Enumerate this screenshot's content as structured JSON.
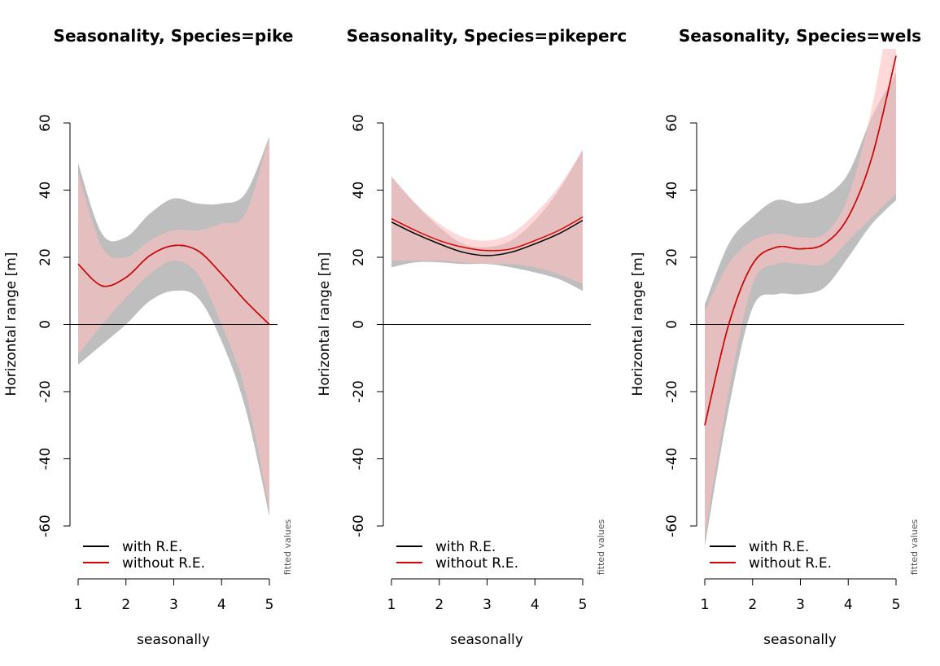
{
  "chart_data": [
    {
      "type": "line",
      "title": "Seasonality, Species=pike",
      "xlabel": "seasonally",
      "ylabel": "Horizontal range [m]",
      "xlim": [
        1,
        5
      ],
      "ylim": [
        -60,
        60
      ],
      "xticks": [
        "1",
        "2",
        "3",
        "4",
        "5"
      ],
      "yticks": [
        "-60",
        "-40",
        "-20",
        "0",
        "20",
        "40",
        "60"
      ],
      "reference_line_y": 0,
      "side_label": "fitted values",
      "legend": [
        "with R.E.",
        "without R.E."
      ],
      "legend_placement": "bottom-left",
      "x": [
        1,
        1.5,
        2,
        2.5,
        3,
        3.5,
        4,
        4.5,
        5
      ],
      "series": [
        {
          "name": "with R.E.",
          "color": "#000000",
          "values": [
            18,
            11.5,
            14,
            20.5,
            23.5,
            22,
            15,
            7,
            0
          ],
          "lower": [
            -12,
            -6,
            0,
            7,
            10,
            8,
            -5,
            -25,
            -57
          ],
          "upper": [
            48,
            27,
            26,
            33,
            37.5,
            36,
            36,
            39,
            56
          ]
        },
        {
          "name": "without R.E.",
          "color": "#dd0000",
          "values": [
            18,
            11.5,
            14,
            20.5,
            23.5,
            22,
            15,
            7,
            0
          ],
          "lower": [
            -9,
            0,
            8,
            15,
            19,
            15,
            0,
            -20,
            -55
          ],
          "upper": [
            45,
            23,
            20,
            25,
            28,
            28,
            30,
            33,
            56
          ]
        }
      ]
    },
    {
      "type": "line",
      "title": "Seasonality, Species=pikeperc",
      "xlabel": "seasonally",
      "ylabel": "Horizontal range [m]",
      "xlim": [
        1,
        5
      ],
      "ylim": [
        -60,
        60
      ],
      "xticks": [
        "1",
        "2",
        "3",
        "4",
        "5"
      ],
      "yticks": [
        "-60",
        "-40",
        "-20",
        "0",
        "20",
        "40",
        "60"
      ],
      "reference_line_y": 0,
      "side_label": "fitted values",
      "legend": [
        "with R.E.",
        "without R.E."
      ],
      "legend_placement": "bottom-left",
      "x": [
        1,
        1.5,
        2,
        2.5,
        3,
        3.5,
        4,
        4.5,
        5
      ],
      "series": [
        {
          "name": "with R.E.",
          "color": "#000000",
          "values": [
            30.5,
            27,
            24,
            21.5,
            20.5,
            21.5,
            24,
            27,
            31
          ],
          "lower": [
            17,
            18.5,
            18.5,
            18,
            18,
            17,
            15.5,
            13.5,
            10
          ],
          "upper": [
            44,
            36,
            29,
            24,
            23,
            25,
            31,
            40,
            52
          ]
        },
        {
          "name": "without R.E.",
          "color": "#dd0000",
          "values": [
            31.5,
            28,
            25,
            23,
            22,
            22.5,
            25,
            28,
            32
          ],
          "lower": [
            19,
            19,
            19,
            18.5,
            18,
            18,
            17,
            15,
            12
          ],
          "upper": [
            44,
            36,
            30,
            26,
            25,
            27,
            33,
            41,
            52
          ]
        }
      ]
    },
    {
      "type": "line",
      "title": "Seasonality, Species=wels",
      "xlabel": "seasonally",
      "ylabel": "Horizontal range [m]",
      "xlim": [
        1,
        5
      ],
      "ylim": [
        -60,
        60
      ],
      "xticks": [
        "1",
        "2",
        "3",
        "4",
        "5"
      ],
      "yticks": [
        "-60",
        "-40",
        "-20",
        "0",
        "20",
        "40",
        "60"
      ],
      "reference_line_y": 0,
      "side_label": "fitted values",
      "legend": [
        "with R.E.",
        "without R.E."
      ],
      "legend_placement": "bottom-left",
      "x": [
        1,
        1.5,
        2,
        2.5,
        3,
        3.5,
        4,
        4.5,
        5
      ],
      "series": [
        {
          "name": "with R.E.",
          "color": "#000000",
          "values": [
            -30,
            0,
            18,
            23,
            22.5,
            24,
            32,
            50,
            80
          ],
          "lower": [
            -66,
            -25,
            5,
            9,
            9,
            11,
            20,
            30,
            37
          ],
          "upper": [
            6,
            24,
            32,
            37,
            36,
            38,
            45,
            62,
            75
          ]
        },
        {
          "name": "without R.E.",
          "color": "#dd0000",
          "values": [
            -30,
            0,
            18,
            23,
            22.5,
            24,
            32,
            50,
            80
          ],
          "lower": [
            -63,
            -20,
            12,
            18,
            18,
            18,
            25,
            32,
            39
          ],
          "upper": [
            4,
            18,
            25,
            27,
            26,
            27,
            38,
            65,
            105
          ]
        }
      ]
    }
  ]
}
